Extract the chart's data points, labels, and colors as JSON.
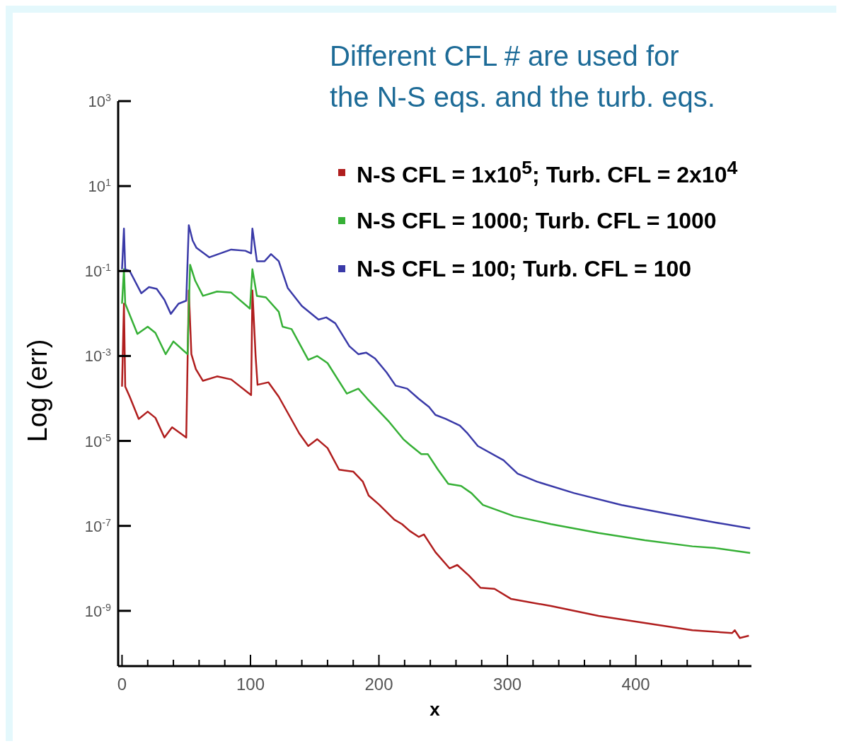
{
  "chart_data": {
    "type": "line",
    "title": "Different CFL # are used for\nthe N-S eqs. and the turb. eqs.",
    "xlabel": "x",
    "ylabel": "Log (err)",
    "log": "y",
    "legend": "top right",
    "xlim": [
      -3,
      490
    ],
    "xticks": [
      0,
      {
        "value": 20,
        "label": null
      },
      {
        "value": 40,
        "label": null
      },
      {
        "value": 60,
        "label": null
      },
      {
        "value": 80,
        "label": null
      },
      100,
      {
        "value": 120,
        "label": null
      },
      {
        "value": 140,
        "label": null
      },
      {
        "value": 160,
        "label": null
      },
      {
        "value": 180,
        "label": null
      },
      200,
      {
        "value": 220,
        "label": null
      },
      {
        "value": 240,
        "label": null
      },
      {
        "value": 260,
        "label": null
      },
      {
        "value": 280,
        "label": null
      },
      300,
      {
        "value": 320,
        "label": null
      },
      {
        "value": 340,
        "label": null
      },
      {
        "value": 360,
        "label": null
      },
      {
        "value": 380,
        "label": null
      },
      400,
      {
        "value": 420,
        "label": null
      },
      {
        "value": 440,
        "label": null
      },
      {
        "value": 460,
        "label": null
      },
      {
        "value": 480,
        "label": null
      }
    ],
    "ylim": [
      5e-11,
      1000
    ],
    "yticks": [
      {
        "value": 1000,
        "label": "10$^{3}$"
      },
      {
        "value": 10,
        "label": "10$^{1}$"
      },
      {
        "value": 0.1,
        "label": "10$^{-1}$"
      },
      {
        "value": 0.001,
        "label": "10$^{-3}$"
      },
      {
        "value": 1e-05,
        "label": "10$^{-5}$"
      },
      {
        "value": 1e-07,
        "label": "10$^{-7}$"
      },
      {
        "value": 1e-09,
        "label": "10$^{-9}$"
      }
    ],
    "series": [
      {
        "name": "N-S CFL = 1x10$^{5}$; Turb. CFL = 2x10$^{4}$",
        "color": "#b01e1e",
        "x": [
          0,
          1.5,
          2.5,
          6,
          13,
          20,
          26,
          33,
          39,
          50,
          52,
          54,
          57.5,
          63,
          74,
          85,
          100.5,
          101.5,
          104,
          105.5,
          114,
          122,
          129,
          138,
          145,
          152,
          160,
          169,
          180,
          187.5,
          192,
          200,
          212,
          218,
          224,
          231,
          235,
          244,
          255,
          261,
          270,
          279,
          290,
          303,
          334,
          371,
          407,
          444,
          475,
          477,
          481,
          488
        ],
        "values": [
          0.00019,
          0.017,
          0.00019,
          0.00011,
          3.3e-05,
          4.9e-05,
          3.5e-05,
          1.2e-05,
          2.1e-05,
          1.2e-05,
          0.035,
          0.0011,
          0.00049,
          0.00026,
          0.00033,
          0.00028,
          0.00012,
          0.035,
          0.001,
          0.00021,
          0.00024,
          0.00011,
          4.6e-05,
          1.5e-05,
          7.6e-06,
          1.1e-05,
          6.8e-06,
          2.1e-06,
          1.9e-06,
          1.1e-06,
          5.2e-07,
          3.2e-07,
          1.4e-07,
          1.1e-07,
          7.6e-08,
          5.5e-08,
          6.3e-08,
          2.4e-08,
          1e-08,
          1.2e-08,
          6.8e-09,
          3.5e-09,
          3.3e-09,
          1.9e-09,
          1.3e-09,
          7.6e-10,
          5.2e-10,
          3.5e-10,
          3e-10,
          3.5e-10,
          2.3e-10,
          2.6e-10
        ]
      },
      {
        "name": "N-S CFL = 1000; Turb. CFL = 1000",
        "color": "#36b036",
        "x": [
          0,
          1.5,
          2.5,
          12,
          20,
          26,
          34,
          40,
          51,
          53,
          57,
          63,
          74,
          85,
          99.6,
          101.5,
          105,
          112,
          122,
          125,
          132,
          145,
          152,
          160,
          175,
          184,
          191,
          208,
          219,
          224,
          233,
          238,
          246,
          254,
          264,
          272,
          281,
          305,
          334,
          371,
          407,
          444,
          462,
          489
        ],
        "values": [
          0.017,
          0.11,
          0.017,
          0.0033,
          0.0049,
          0.0035,
          0.0011,
          0.0022,
          0.0011,
          0.14,
          0.059,
          0.026,
          0.033,
          0.031,
          0.013,
          0.11,
          0.026,
          0.024,
          0.011,
          0.0049,
          0.0043,
          0.00081,
          0.001,
          0.00068,
          0.00013,
          0.00017,
          9.8e-05,
          2.8e-05,
          1.1e-05,
          8.1e-06,
          4.9e-06,
          4.9e-06,
          2.1e-06,
          9.8e-07,
          8.7e-07,
          5.9e-07,
          3.1e-07,
          1.7e-07,
          1.1e-07,
          6.8e-08,
          4.6e-08,
          3.3e-08,
          3e-08,
          2.3e-08
        ]
      },
      {
        "name": "N-S CFL = 100; Turb. CFL = 100",
        "color": "#3a3aa8",
        "x": [
          0,
          1.5,
          2.5,
          6,
          15,
          21,
          27,
          33,
          38,
          44,
          50,
          52,
          55,
          58,
          68,
          85,
          96,
          100.5,
          101.5,
          105,
          111,
          116,
          122,
          129,
          140,
          153,
          159,
          166,
          177,
          184,
          190,
          197,
          206,
          213,
          222,
          231,
          239,
          244,
          252,
          263,
          269,
          277,
          297,
          308,
          323,
          352,
          389,
          426,
          462,
          489
        ],
        "values": [
          0.11,
          1,
          0.11,
          0.1,
          0.03,
          0.042,
          0.038,
          0.021,
          0.0098,
          0.017,
          0.02,
          1.2,
          0.52,
          0.35,
          0.21,
          0.32,
          0.3,
          0.26,
          1,
          0.17,
          0.17,
          0.25,
          0.17,
          0.04,
          0.015,
          0.0072,
          0.0081,
          0.0059,
          0.0017,
          0.0011,
          0.0012,
          0.00087,
          0.00041,
          0.0002,
          0.00017,
          9.8e-05,
          6.3e-05,
          4.1e-05,
          3.3e-05,
          2.3e-05,
          1.5e-05,
          7.6e-06,
          3.5e-06,
          1.7e-06,
          1.1e-06,
          5.9e-07,
          3.1e-07,
          1.9e-07,
          1.2e-07,
          8.7e-08
        ]
      }
    ]
  }
}
